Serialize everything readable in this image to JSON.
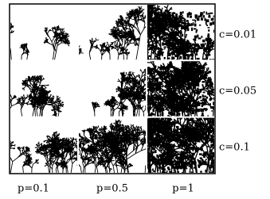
{
  "columns": [
    "p=0.1",
    "p=0.5",
    "p=1"
  ],
  "rows": [
    "c=0.01",
    "c=0.05",
    "c=0.1"
  ]
}
